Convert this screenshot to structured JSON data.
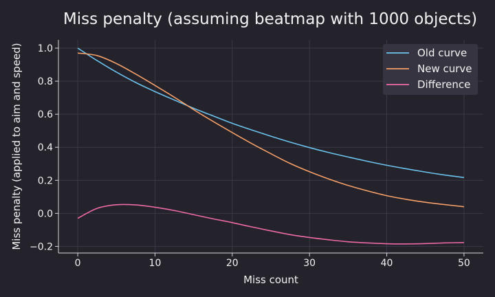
{
  "chart_data": {
    "type": "line",
    "title": "Miss penalty (assuming beatmap with 1000 objects)",
    "xlabel": "Miss count",
    "ylabel": "Miss penalty (applied to aim and speed)",
    "xlim": [
      -2.5,
      52.5
    ],
    "ylim": [
      -0.24,
      1.05
    ],
    "xticks": [
      0,
      10,
      20,
      30,
      40,
      50
    ],
    "yticks": [
      -0.2,
      0.0,
      0.2,
      0.4,
      0.6,
      0.8,
      1.0
    ],
    "grid": true,
    "legend": "top-right",
    "x": [
      0,
      2.5,
      5,
      7.5,
      10,
      12.5,
      15,
      17.5,
      20,
      22.5,
      25,
      27.5,
      30,
      32.5,
      35,
      37.5,
      40,
      42.5,
      45,
      47.5,
      50
    ],
    "series": [
      {
        "name": "Old curve",
        "color": "#6cc3ee",
        "values": [
          1.0,
          0.925,
          0.855,
          0.792,
          0.737,
          0.686,
          0.636,
          0.59,
          0.545,
          0.505,
          0.467,
          0.431,
          0.398,
          0.368,
          0.341,
          0.315,
          0.291,
          0.27,
          0.25,
          0.232,
          0.217
        ]
      },
      {
        "name": "New curve",
        "color": "#f6a06a",
        "values": [
          0.97,
          0.955,
          0.907,
          0.843,
          0.774,
          0.703,
          0.628,
          0.557,
          0.489,
          0.423,
          0.361,
          0.302,
          0.252,
          0.208,
          0.169,
          0.136,
          0.107,
          0.085,
          0.067,
          0.053,
          0.04
        ]
      },
      {
        "name": "Difference",
        "color": "#ee6aa6",
        "values": [
          -0.03,
          0.03,
          0.052,
          0.051,
          0.037,
          0.017,
          -0.008,
          -0.033,
          -0.056,
          -0.082,
          -0.106,
          -0.129,
          -0.146,
          -0.16,
          -0.172,
          -0.179,
          -0.184,
          -0.185,
          -0.183,
          -0.179,
          -0.177
        ]
      }
    ]
  }
}
